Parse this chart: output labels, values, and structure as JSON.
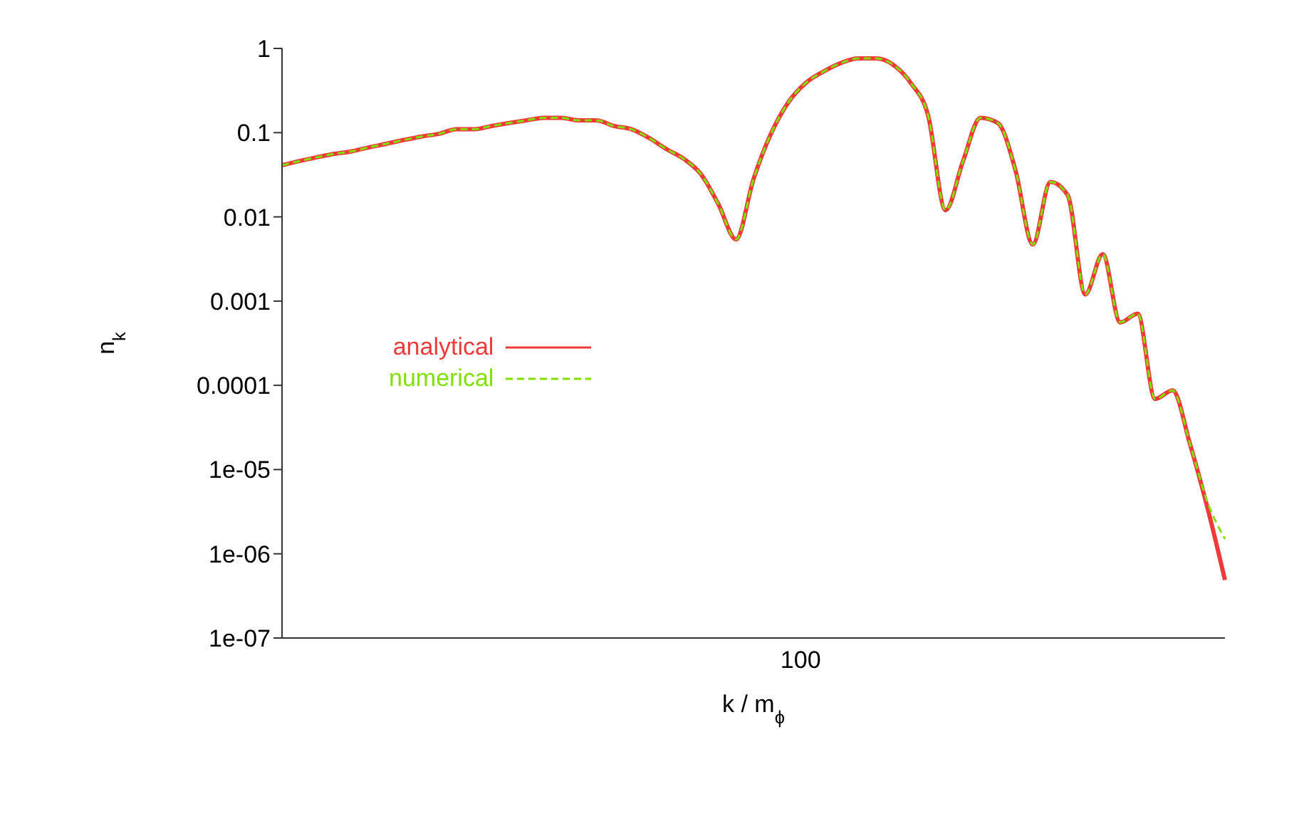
{
  "chart_data": {
    "type": "line",
    "xlabel": "k / m$_{ϕ}$",
    "ylabel": "n$_{k}$",
    "log": "y",
    "legend": "left",
    "line_style": "solid",
    "marker": "none",
    "annotations": [
      "100"
    ],
    "categories": [
      null,
      null,
      null,
      null,
      null,
      null,
      null,
      null,
      null,
      null,
      null,
      null,
      null,
      null,
      null,
      null,
      null,
      null,
      null,
      null,
      null,
      null,
      null,
      null,
      null,
      null,
      null,
      null,
      null,
      null,
      null,
      null,
      null,
      null,
      null,
      null,
      null,
      null,
      null,
      null,
      null,
      null,
      null,
      null,
      null,
      null,
      null,
      null,
      null,
      null,
      null,
      null,
      null,
      null,
      null
    ],
    "ylim": [
      1e-07,
      1
    ],
    "yticks": [
      1,
      0.1,
      0.01,
      0.001,
      0.0001,
      {
        "value": 1e-05,
        "label": "1e-05"
      },
      {
        "value": 1e-06,
        "label": "1e-06"
      },
      {
        "value": 1e-07,
        "label": "1e-07"
      }
    ],
    "series": [
      {
        "name": "analytical",
        "color": "#f03a3a",
        "values": [
          0.041,
          0.046,
          0.051,
          0.056,
          0.06,
          0.067,
          0.074,
          0.082,
          0.09,
          0.097,
          0.11,
          0.11,
          0.12,
          0.13,
          0.14,
          0.15,
          0.15,
          0.14,
          0.14,
          0.12,
          0.11,
          0.087,
          0.064,
          0.049,
          0.032,
          0.014,
          0.0054,
          0.028,
          0.097,
          0.23,
          0.39,
          0.53,
          0.67,
          0.76,
          0.76,
          0.64,
          0.39,
          0.16,
          0.012,
          0.046,
          0.15,
          0.13,
          0.036,
          0.0047,
          0.026,
          0.018,
          0.0012,
          0.0036,
          0.00056,
          0.00071,
          6.9e-05,
          8.7e-05,
          2e-05,
          3.5e-06,
          4.9e-07
        ]
      },
      {
        "name": "numerical",
        "color": "#80e000",
        "line_style": "dashed",
        "values": [
          0.041,
          0.046,
          0.051,
          0.056,
          0.06,
          0.067,
          0.074,
          0.082,
          0.09,
          0.097,
          0.11,
          0.11,
          0.12,
          0.13,
          0.14,
          0.15,
          0.15,
          0.14,
          0.14,
          0.12,
          0.11,
          0.087,
          0.064,
          0.049,
          0.032,
          0.014,
          0.0054,
          0.028,
          0.097,
          0.23,
          0.39,
          0.53,
          0.67,
          0.76,
          0.76,
          0.64,
          0.39,
          0.16,
          0.012,
          0.046,
          0.15,
          0.13,
          0.036,
          0.0047,
          0.026,
          0.018,
          0.0012,
          0.0036,
          0.00056,
          0.00071,
          6.9e-05,
          8.7e-05,
          2e-05,
          4.1e-06,
          1.5e-06
        ]
      }
    ]
  }
}
